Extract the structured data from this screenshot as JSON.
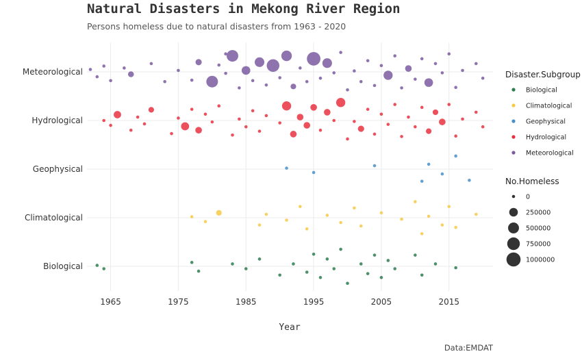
{
  "chart_data": {
    "type": "scatter",
    "title": "Natural Disasters in Mekong River Region",
    "subtitle": "Persons homeless due to natural disasters from 1963 - 2020",
    "xlabel": "Year",
    "ylabel": "",
    "caption": "Data:EMDAT",
    "xlim": [
      1961.5,
      2021.5
    ],
    "x_ticks": [
      1965,
      1975,
      1985,
      1995,
      2005,
      2015
    ],
    "categories": [
      "Biological",
      "Climatological",
      "Geophysical",
      "Hydrological",
      "Meteorological"
    ],
    "grid": true,
    "colors": {
      "Biological": "#2e7d4f",
      "Climatological": "#f7c948",
      "Geophysical": "#4a90c8",
      "Hydrological": "#e8313f",
      "Meteorological": "#7a5aa0"
    },
    "color_legend": {
      "title": "Disaster.Subgroup",
      "position": "right",
      "entries": [
        "Biological",
        "Climatological",
        "Geophysical",
        "Hydrological",
        "Meteorological"
      ]
    },
    "size_legend": {
      "title": "No.Homeless",
      "position": "right",
      "values": [
        0,
        250000,
        500000,
        750000,
        1000000
      ],
      "labels": [
        "0",
        "250000",
        "500000",
        "750000",
        "1000000"
      ]
    },
    "series": [
      {
        "name": "Meteorological",
        "points": [
          {
            "x": 1962,
            "j": 0.05,
            "h": 0
          },
          {
            "x": 1963,
            "j": -0.1,
            "h": 0
          },
          {
            "x": 1964,
            "j": 0.12,
            "h": 0
          },
          {
            "x": 1965,
            "j": -0.18,
            "h": 0
          },
          {
            "x": 1967,
            "j": 0.08,
            "h": 0
          },
          {
            "x": 1968,
            "j": -0.05,
            "h": 60000
          },
          {
            "x": 1971,
            "j": 0.17,
            "h": 0
          },
          {
            "x": 1973,
            "j": -0.2,
            "h": 0
          },
          {
            "x": 1975,
            "j": 0.03,
            "h": 0
          },
          {
            "x": 1977,
            "j": -0.17,
            "h": 0
          },
          {
            "x": 1978,
            "j": 0.2,
            "h": 80000
          },
          {
            "x": 1980,
            "j": -0.2,
            "h": 600000
          },
          {
            "x": 1981,
            "j": 0.14,
            "h": 0
          },
          {
            "x": 1982,
            "j": 0.37,
            "h": 0
          },
          {
            "x": 1982,
            "j": -0.03,
            "h": 0
          },
          {
            "x": 1983,
            "j": 0.33,
            "h": 600000
          },
          {
            "x": 1984,
            "j": -0.33,
            "h": 0
          },
          {
            "x": 1985,
            "j": 0.03,
            "h": 250000
          },
          {
            "x": 1986,
            "j": -0.18,
            "h": 0
          },
          {
            "x": 1987,
            "j": 0.2,
            "h": 350000
          },
          {
            "x": 1988,
            "j": -0.27,
            "h": 0
          },
          {
            "x": 1989,
            "j": 0.13,
            "h": 750000
          },
          {
            "x": 1990,
            "j": -0.12,
            "h": 0
          },
          {
            "x": 1991,
            "j": 0.33,
            "h": 450000
          },
          {
            "x": 1992,
            "j": -0.3,
            "h": 50000
          },
          {
            "x": 1993,
            "j": 0.08,
            "h": 0
          },
          {
            "x": 1994,
            "j": -0.2,
            "h": 0
          },
          {
            "x": 1995,
            "j": 0.27,
            "h": 900000
          },
          {
            "x": 1996,
            "j": -0.13,
            "h": 0
          },
          {
            "x": 1997,
            "j": 0.18,
            "h": 350000
          },
          {
            "x": 1998,
            "j": -0.02,
            "h": 0
          },
          {
            "x": 1999,
            "j": 0.4,
            "h": 0
          },
          {
            "x": 2000,
            "j": -0.37,
            "h": 0
          },
          {
            "x": 2001,
            "j": 0.02,
            "h": 0
          },
          {
            "x": 2002,
            "j": -0.2,
            "h": 0
          },
          {
            "x": 2003,
            "j": 0.23,
            "h": 0
          },
          {
            "x": 2004,
            "j": -0.28,
            "h": 0
          },
          {
            "x": 2005,
            "j": 0.13,
            "h": 0
          },
          {
            "x": 2006,
            "j": -0.07,
            "h": 300000
          },
          {
            "x": 2007,
            "j": 0.33,
            "h": 0
          },
          {
            "x": 2008,
            "j": -0.33,
            "h": 0
          },
          {
            "x": 2009,
            "j": 0.07,
            "h": 100000
          },
          {
            "x": 2010,
            "j": -0.15,
            "h": 0
          },
          {
            "x": 2011,
            "j": 0.27,
            "h": 0
          },
          {
            "x": 2012,
            "j": -0.22,
            "h": 250000
          },
          {
            "x": 2013,
            "j": 0.17,
            "h": 0
          },
          {
            "x": 2014,
            "j": -0.02,
            "h": 0
          },
          {
            "x": 2015,
            "j": 0.37,
            "h": 0
          },
          {
            "x": 2016,
            "j": -0.32,
            "h": 0
          },
          {
            "x": 2017,
            "j": 0.03,
            "h": 0
          },
          {
            "x": 2019,
            "j": 0.17,
            "h": 0
          },
          {
            "x": 2020,
            "j": -0.13,
            "h": 0
          }
        ]
      },
      {
        "name": "Hydrological",
        "points": [
          {
            "x": 1964,
            "j": 0,
            "h": 0
          },
          {
            "x": 1965,
            "j": -0.1,
            "h": 0
          },
          {
            "x": 1966,
            "j": 0.12,
            "h": 150000
          },
          {
            "x": 1968,
            "j": -0.2,
            "h": 0
          },
          {
            "x": 1969,
            "j": 0.07,
            "h": 0
          },
          {
            "x": 1970,
            "j": -0.07,
            "h": 0
          },
          {
            "x": 1971,
            "j": 0.22,
            "h": 50000
          },
          {
            "x": 1974,
            "j": -0.27,
            "h": 0
          },
          {
            "x": 1975,
            "j": 0.05,
            "h": 0
          },
          {
            "x": 1976,
            "j": -0.12,
            "h": 200000
          },
          {
            "x": 1977,
            "j": 0.23,
            "h": 0
          },
          {
            "x": 1978,
            "j": -0.2,
            "h": 100000
          },
          {
            "x": 1979,
            "j": 0.13,
            "h": 0
          },
          {
            "x": 1980,
            "j": -0.03,
            "h": 0
          },
          {
            "x": 1981,
            "j": 0.3,
            "h": 0
          },
          {
            "x": 1983,
            "j": -0.3,
            "h": 0
          },
          {
            "x": 1984,
            "j": 0.03,
            "h": 0
          },
          {
            "x": 1985,
            "j": -0.13,
            "h": 0
          },
          {
            "x": 1986,
            "j": 0.2,
            "h": 0
          },
          {
            "x": 1987,
            "j": -0.22,
            "h": 0
          },
          {
            "x": 1988,
            "j": 0.1,
            "h": 0
          },
          {
            "x": 1990,
            "j": -0.05,
            "h": 0
          },
          {
            "x": 1991,
            "j": 0.3,
            "h": 300000
          },
          {
            "x": 1992,
            "j": -0.28,
            "h": 100000
          },
          {
            "x": 1993,
            "j": 0.07,
            "h": 100000
          },
          {
            "x": 1994,
            "j": -0.1,
            "h": 100000
          },
          {
            "x": 1995,
            "j": 0.27,
            "h": 100000
          },
          {
            "x": 1996,
            "j": -0.2,
            "h": 0
          },
          {
            "x": 1997,
            "j": 0.17,
            "h": 100000
          },
          {
            "x": 1998,
            "j": 0,
            "h": 0
          },
          {
            "x": 1999,
            "j": 0.37,
            "h": 300000
          },
          {
            "x": 2000,
            "j": -0.38,
            "h": 0
          },
          {
            "x": 2001,
            "j": -0.02,
            "h": 0
          },
          {
            "x": 2002,
            "j": -0.17,
            "h": 80000
          },
          {
            "x": 2003,
            "j": 0.23,
            "h": 0
          },
          {
            "x": 2004,
            "j": -0.28,
            "h": 0
          },
          {
            "x": 2005,
            "j": 0.13,
            "h": 0
          },
          {
            "x": 2006,
            "j": -0.08,
            "h": 0
          },
          {
            "x": 2007,
            "j": 0.33,
            "h": 0
          },
          {
            "x": 2008,
            "j": -0.33,
            "h": 0
          },
          {
            "x": 2009,
            "j": 0.07,
            "h": 0
          },
          {
            "x": 2010,
            "j": -0.13,
            "h": 0
          },
          {
            "x": 2011,
            "j": 0.27,
            "h": 0
          },
          {
            "x": 2012,
            "j": -0.22,
            "h": 50000
          },
          {
            "x": 2013,
            "j": 0.17,
            "h": 50000
          },
          {
            "x": 2014,
            "j": -0.03,
            "h": 100000
          },
          {
            "x": 2015,
            "j": 0.33,
            "h": 0
          },
          {
            "x": 2016,
            "j": -0.32,
            "h": 0
          },
          {
            "x": 2017,
            "j": 0.03,
            "h": 0
          },
          {
            "x": 2019,
            "j": 0.17,
            "h": 0
          },
          {
            "x": 2020,
            "j": -0.13,
            "h": 0
          }
        ]
      },
      {
        "name": "Geophysical",
        "points": [
          {
            "x": 1991,
            "j": 0.02,
            "h": 0
          },
          {
            "x": 1995,
            "j": -0.07,
            "h": 0
          },
          {
            "x": 2004,
            "j": 0.07,
            "h": 0
          },
          {
            "x": 2011,
            "j": -0.25,
            "h": 0
          },
          {
            "x": 2012,
            "j": 0.1,
            "h": 0
          },
          {
            "x": 2014,
            "j": -0.1,
            "h": 0
          },
          {
            "x": 2016,
            "j": 0.27,
            "h": 0
          },
          {
            "x": 2018,
            "j": -0.23,
            "h": 0
          }
        ]
      },
      {
        "name": "Climatological",
        "points": [
          {
            "x": 1977,
            "j": 0.02,
            "h": 0
          },
          {
            "x": 1979,
            "j": -0.08,
            "h": 0
          },
          {
            "x": 1981,
            "j": 0.1,
            "h": 50000
          },
          {
            "x": 1987,
            "j": -0.15,
            "h": 0
          },
          {
            "x": 1988,
            "j": 0.07,
            "h": 0
          },
          {
            "x": 1991,
            "j": -0.05,
            "h": 0
          },
          {
            "x": 1993,
            "j": 0.23,
            "h": 0
          },
          {
            "x": 1994,
            "j": -0.23,
            "h": 0
          },
          {
            "x": 1997,
            "j": 0.05,
            "h": 0
          },
          {
            "x": 1999,
            "j": -0.1,
            "h": 0
          },
          {
            "x": 2001,
            "j": 0.2,
            "h": 0
          },
          {
            "x": 2002,
            "j": -0.17,
            "h": 0
          },
          {
            "x": 2005,
            "j": 0.1,
            "h": 0
          },
          {
            "x": 2008,
            "j": -0.03,
            "h": 0
          },
          {
            "x": 2010,
            "j": 0.33,
            "h": 0
          },
          {
            "x": 2011,
            "j": -0.33,
            "h": 0
          },
          {
            "x": 2012,
            "j": 0.03,
            "h": 0
          },
          {
            "x": 2014,
            "j": -0.15,
            "h": 0
          },
          {
            "x": 2015,
            "j": 0.23,
            "h": 0
          },
          {
            "x": 2016,
            "j": -0.2,
            "h": 0
          },
          {
            "x": 2019,
            "j": 0.07,
            "h": 0
          }
        ]
      },
      {
        "name": "Biological",
        "points": [
          {
            "x": 1963,
            "j": 0.02,
            "h": 0
          },
          {
            "x": 1964,
            "j": -0.05,
            "h": 0
          },
          {
            "x": 1977,
            "j": 0.08,
            "h": 0
          },
          {
            "x": 1978,
            "j": -0.1,
            "h": 0
          },
          {
            "x": 1983,
            "j": 0.05,
            "h": 0
          },
          {
            "x": 1985,
            "j": -0.05,
            "h": 0
          },
          {
            "x": 1987,
            "j": 0.15,
            "h": 0
          },
          {
            "x": 1990,
            "j": -0.18,
            "h": 0
          },
          {
            "x": 1992,
            "j": 0.05,
            "h": 0
          },
          {
            "x": 1994,
            "j": -0.12,
            "h": 0
          },
          {
            "x": 1995,
            "j": 0.25,
            "h": 0
          },
          {
            "x": 1996,
            "j": -0.23,
            "h": 0
          },
          {
            "x": 1997,
            "j": 0.15,
            "h": 0
          },
          {
            "x": 1998,
            "j": -0.05,
            "h": 0
          },
          {
            "x": 1999,
            "j": 0.35,
            "h": 0
          },
          {
            "x": 2000,
            "j": -0.35,
            "h": 0
          },
          {
            "x": 2002,
            "j": 0.05,
            "h": 0
          },
          {
            "x": 2003,
            "j": -0.15,
            "h": 0
          },
          {
            "x": 2004,
            "j": 0.23,
            "h": 0
          },
          {
            "x": 2005,
            "j": -0.23,
            "h": 0
          },
          {
            "x": 2006,
            "j": 0.12,
            "h": 0
          },
          {
            "x": 2007,
            "j": -0.05,
            "h": 0
          },
          {
            "x": 2010,
            "j": 0.23,
            "h": 0
          },
          {
            "x": 2011,
            "j": -0.18,
            "h": 0
          },
          {
            "x": 2013,
            "j": 0.05,
            "h": 0
          },
          {
            "x": 2016,
            "j": -0.03,
            "h": 0
          }
        ]
      }
    ]
  }
}
